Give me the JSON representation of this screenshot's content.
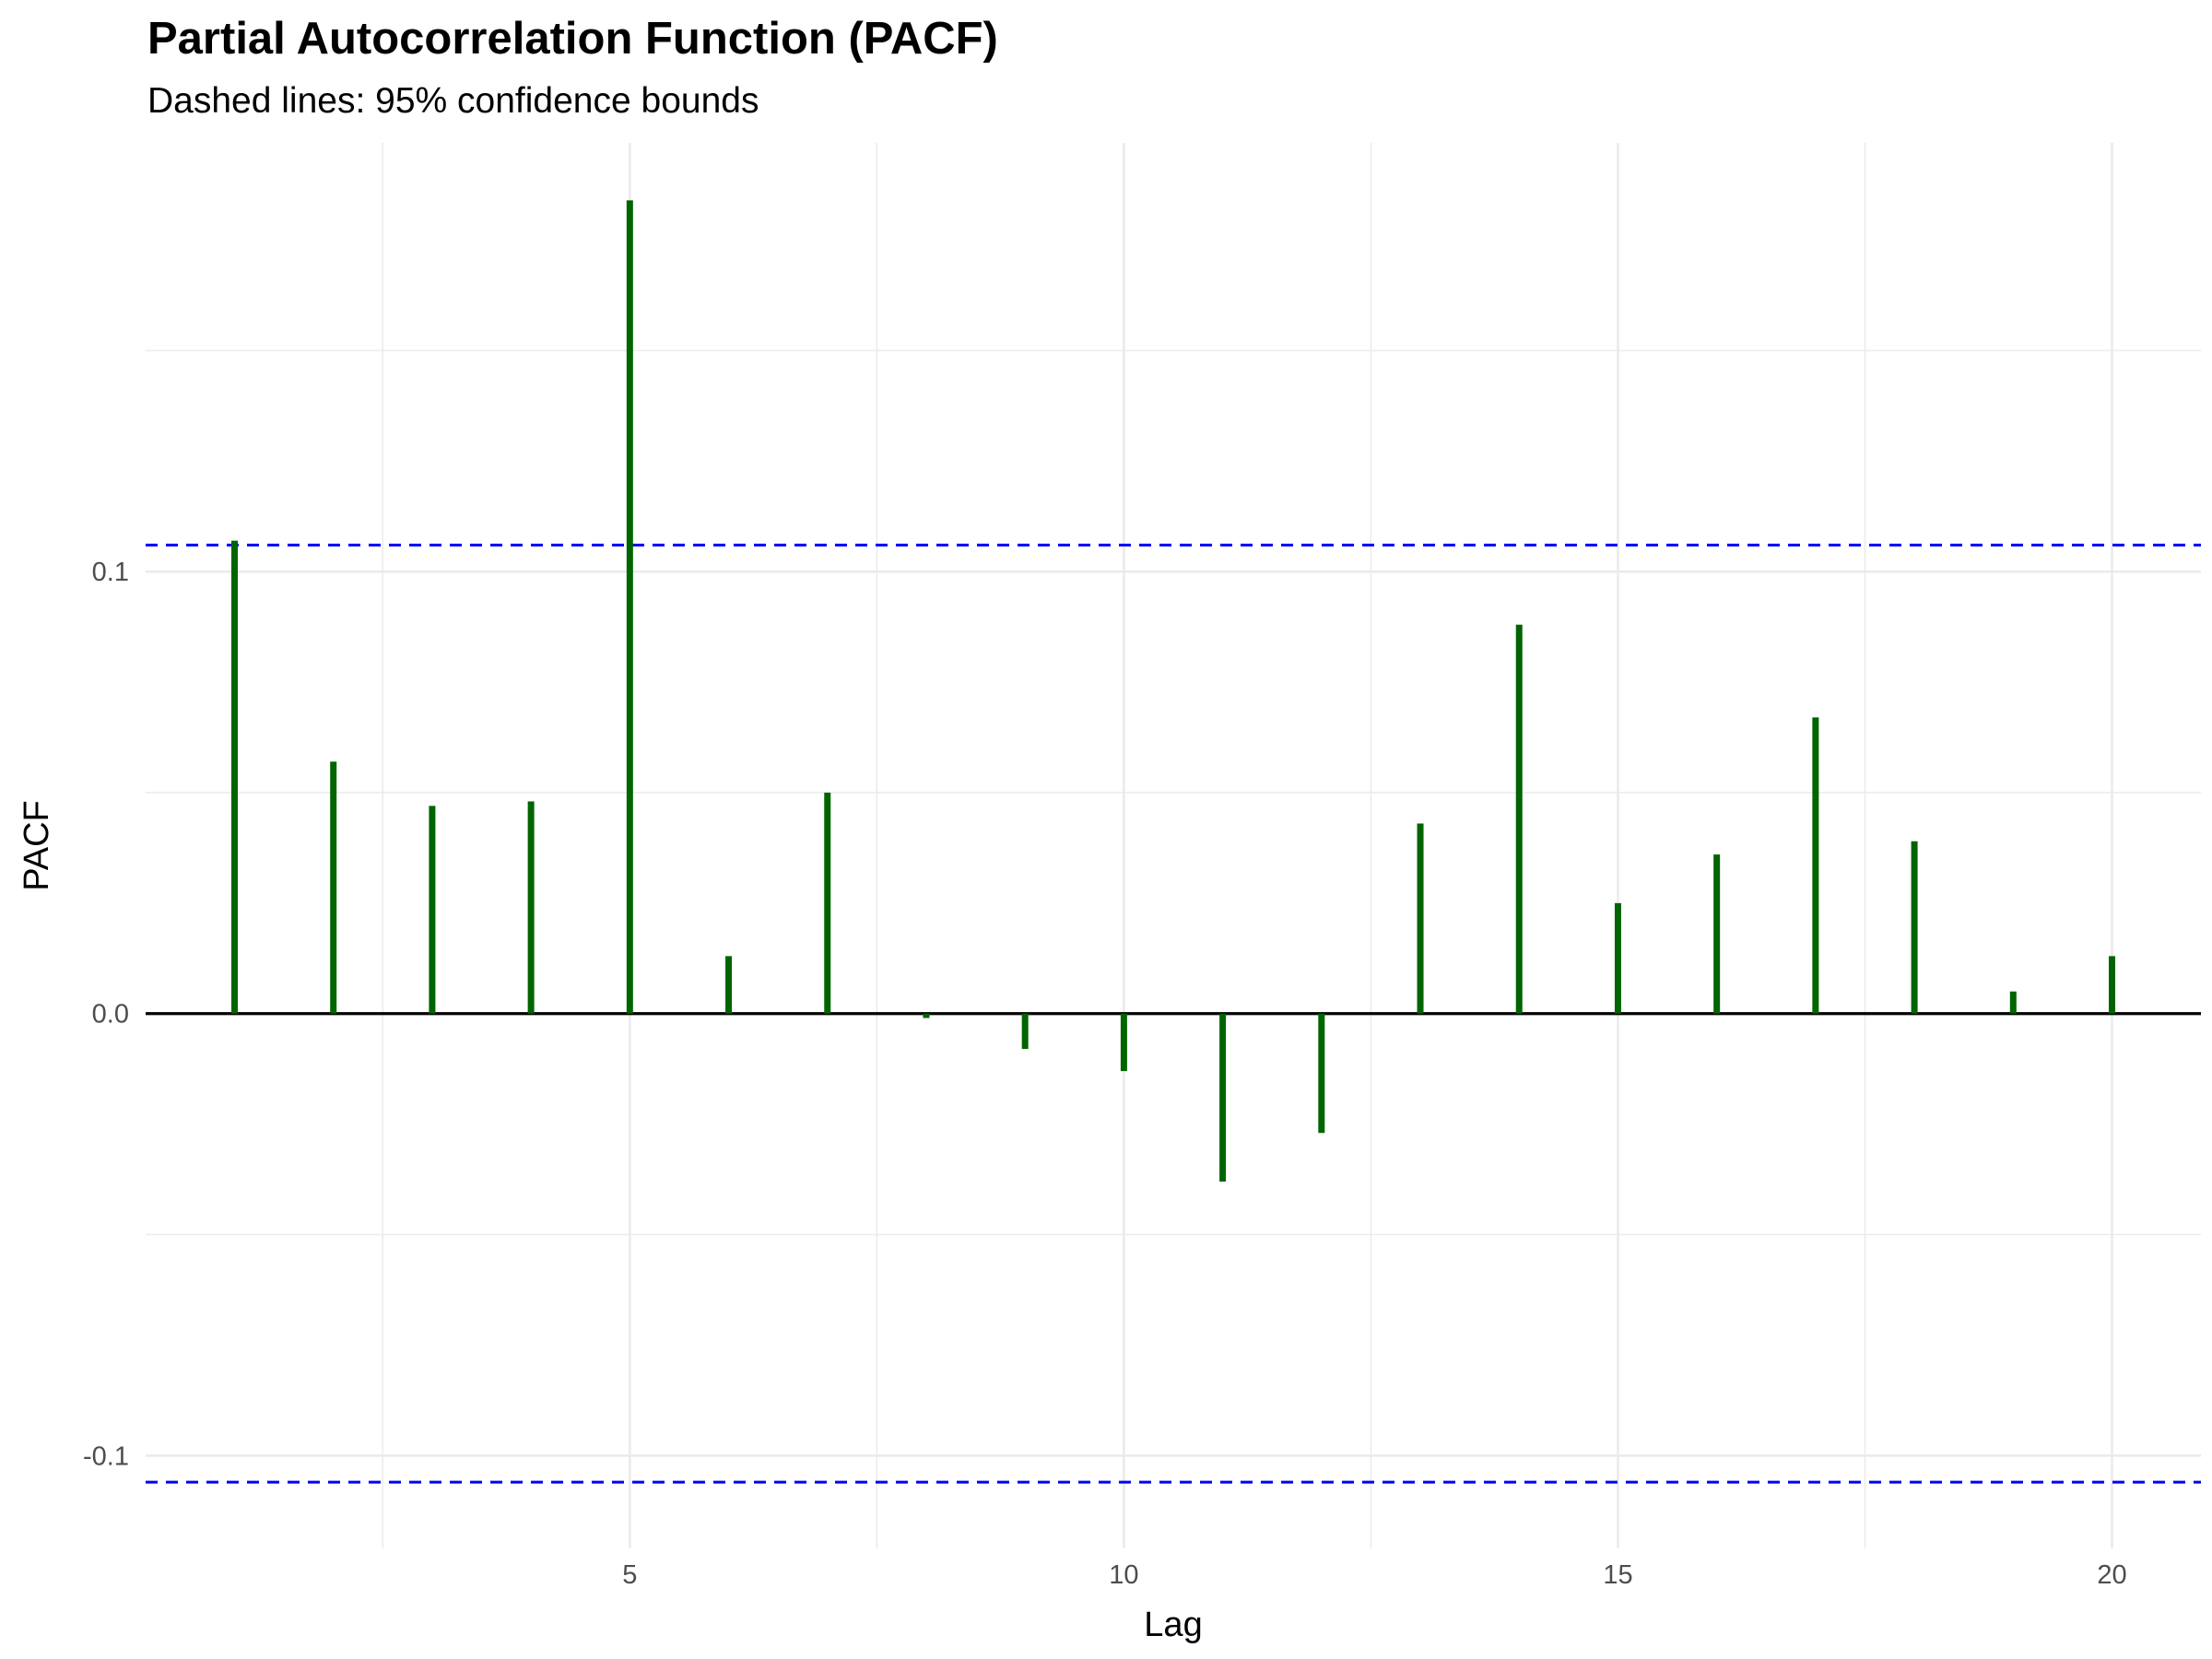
{
  "chart_data": {
    "type": "bar",
    "title": "Partial Autocorrelation Function (PACF)",
    "subtitle": "Dashed lines: 95% confidence bounds",
    "xlabel": "Lag",
    "ylabel": "PACF",
    "x": [
      1,
      2,
      3,
      4,
      5,
      6,
      7,
      8,
      9,
      10,
      11,
      12,
      13,
      14,
      15,
      16,
      17,
      18,
      19,
      20
    ],
    "values": [
      0.107,
      0.057,
      0.047,
      0.048,
      0.184,
      0.013,
      0.05,
      -0.001,
      -0.008,
      -0.013,
      -0.038,
      -0.027,
      0.043,
      0.088,
      0.025,
      0.036,
      0.067,
      0.039,
      0.005,
      0.013
    ],
    "confidence_bound": 0.106,
    "xlim": [
      0.1,
      20.9
    ],
    "ylim": [
      -0.121,
      0.197
    ],
    "x_ticks": [
      5,
      10,
      15,
      20
    ],
    "x_tick_labels": [
      "5",
      "10",
      "15",
      "20"
    ],
    "y_ticks": [
      -0.1,
      0.0,
      0.1
    ],
    "y_tick_labels": [
      "-0.1",
      "0.0",
      "0.1"
    ],
    "grid": true,
    "legend": "none",
    "colors": {
      "bars": "#006400",
      "confidence_lines": "#0000ff",
      "zero_line": "#000000",
      "grid": "#ebebeb"
    }
  }
}
